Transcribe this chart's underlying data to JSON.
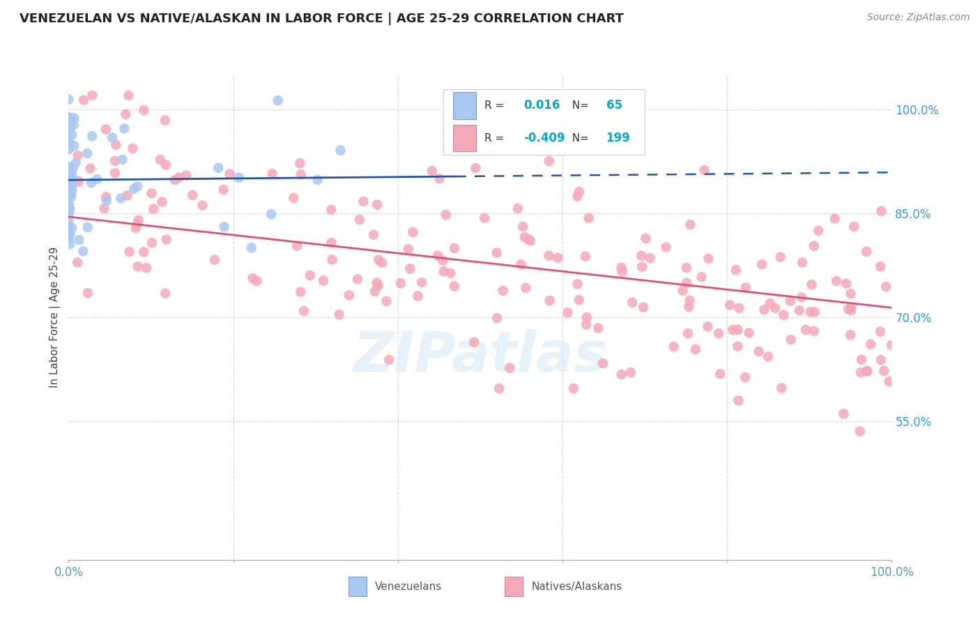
{
  "title": "VENEZUELAN VS NATIVE/ALASKAN IN LABOR FORCE | AGE 25-29 CORRELATION CHART",
  "source": "Source: ZipAtlas.com",
  "ylabel": "In Labor Force | Age 25-29",
  "legend_label1": "Venezuelans",
  "legend_label2": "Natives/Alaskans",
  "r1": 0.016,
  "n1": 65,
  "r2": -0.409,
  "n2": 199,
  "blue_color": "#a8c8f0",
  "pink_color": "#f5a8b8",
  "blue_line_color": "#2255aa",
  "pink_line_color": "#e05070",
  "legend_r_color": "#00aacc",
  "legend_text_color": "#333333",
  "background_color": "#ffffff",
  "grid_color": "#cccccc",
  "ytick_color": "#3399ee",
  "xtick_color": "#5599bb",
  "watermark": "ZIPatlas",
  "seed": 42,
  "xlim": [
    0.0,
    1.0
  ],
  "ylim": [
    0.35,
    1.05
  ],
  "ytick_values": [
    0.55,
    0.7,
    0.85,
    1.0
  ],
  "ytick_labels": [
    "55.0%",
    "70.0%",
    "85.0%",
    "100.0%"
  ],
  "blue_line_switch_x": 0.47
}
